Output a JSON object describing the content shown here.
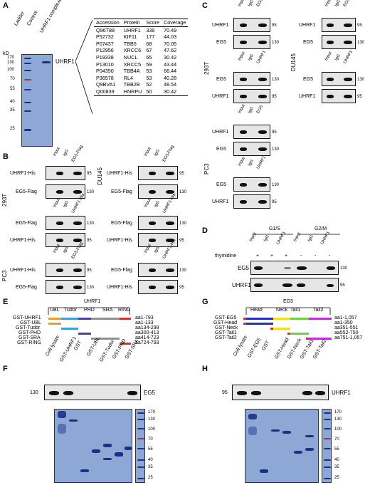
{
  "panels": {
    "A": "A",
    "B": "B",
    "C": "C",
    "D": "D",
    "E": "E",
    "F": "F",
    "G": "G",
    "H": "H"
  },
  "panelA": {
    "kd_label": "kD",
    "lanes": [
      "Ladder",
      "Control",
      "UHRF1 complexes"
    ],
    "markers": [
      "170",
      "130",
      "100",
      "70",
      "55",
      "40",
      "35",
      "25"
    ],
    "band_label": "UHRF1",
    "table": {
      "headers": [
        "Accession",
        "Protein",
        "Score",
        "Coverage"
      ],
      "rows": [
        [
          "Q96T88",
          "UHRF1",
          "339",
          "70.49"
        ],
        [
          "P52732",
          "KIF11",
          "177",
          "44.03"
        ],
        [
          "P07437",
          "TBB5",
          "68",
          "70.05"
        ],
        [
          "P12956",
          "XRCC6",
          "67",
          "47.62"
        ],
        [
          "P19338",
          "NUCL",
          "65",
          "30.42"
        ],
        [
          "P13010",
          "XRCC5",
          "59",
          "43.44"
        ],
        [
          "P04350",
          "TBB4A",
          "53",
          "66.44"
        ],
        [
          "P36578",
          "RL4",
          "53",
          "40.28"
        ],
        [
          "Q9BVA1",
          "TBB2B",
          "52",
          "48.54"
        ],
        [
          "Q00839",
          "HNRPU",
          "50",
          "30.42"
        ]
      ]
    }
  },
  "panelB": {
    "cells": [
      "293T",
      "DU145",
      "PC3"
    ],
    "lanes_eg5": [
      "Input",
      "IgG",
      "EG5-Flag"
    ],
    "lanes_uhrf1": [
      "Input",
      "IgG",
      "UHRF1-His"
    ],
    "labels": {
      "uhrf1_his": "UHRF1-His",
      "eg5_flag": "EG5-Flag"
    },
    "mw": {
      "m95": "95",
      "m130": "130"
    }
  },
  "panelC": {
    "cells": [
      "293T",
      "DU145",
      "PC3"
    ],
    "lanes_eg5": [
      "Input",
      "IgG",
      "EG5"
    ],
    "lanes_uhrf1": [
      "Input",
      "IgG",
      "UHRF1"
    ],
    "labels": {
      "uhrf1": "UHRF1",
      "eg5": "EG5"
    },
    "mw": {
      "m95": "95",
      "m130": "130"
    }
  },
  "panelD": {
    "phases": [
      "G1/S",
      "G2/M"
    ],
    "thymidine_label": "thymidine",
    "signs": [
      "+",
      "+",
      "+",
      "-",
      "-",
      "-"
    ],
    "lanes": [
      "Input",
      "IgG",
      "UHRF1",
      "Input",
      "IgG",
      "UHRF1"
    ],
    "labels": {
      "eg5": "EG5",
      "uhrf1": "UHRF1"
    },
    "mw": {
      "m130": "130",
      "m95": "95"
    }
  },
  "panelE": {
    "title": "UHRF1",
    "domains": [
      "UBL",
      "Tudor",
      "PHD",
      "SRA",
      "RING"
    ],
    "constructs": [
      "GST-UHRF1",
      "GST-UBL",
      "GST-Tudor",
      "GST-PHD",
      "GST-SRA",
      "GST-RING"
    ],
    "ranges": [
      "aa1-793",
      "aa1-133",
      "aa134-299",
      "aa300-413",
      "aa414-723",
      "aa724-793"
    ]
  },
  "panelF": {
    "lanes": [
      "Cell lysate",
      "GST-UHRF1",
      "GST",
      "GST-UBL",
      "GST-Tudor",
      "GST-PHD",
      "GST-SRA"
    ],
    "blot_label": "EG5",
    "mw_blot": "130",
    "markers": [
      "170",
      "130",
      "100",
      "70",
      "55",
      "40",
      "35",
      "25"
    ]
  },
  "panelG": {
    "title": "EG5",
    "domains": [
      "Head",
      "Neck",
      "Tail1",
      "Tail2"
    ],
    "constructs": [
      "GST-EG5",
      "GST-Head",
      "GST-Neck",
      "GST-Tail1",
      "GST-Tail2"
    ],
    "ranges": [
      "aa1-1,057",
      "aa1-350",
      "aa351-551",
      "aa552-750",
      "aa751-1,057"
    ]
  },
  "panelH": {
    "lanes": [
      "Cell lysate",
      "GST-EG5",
      "GST",
      "GST-Head",
      "GST-Neck",
      "GST-Tail1",
      "GST-Tail2"
    ],
    "blot_label": "UHRF1",
    "mw_blot": "95",
    "markers": [
      "170",
      "130",
      "100",
      "70",
      "55",
      "40",
      "35",
      "25"
    ]
  },
  "colors": {
    "coomassie_bg": "#8ea8d6",
    "band": "#1b2f86",
    "ubl": "#e0a13a",
    "tudor": "#3aa0d6",
    "phd": "#5a3aa0",
    "sra": "#909090",
    "ring": "#d63030",
    "head": "#2430c0",
    "neck": "#f0e020",
    "tail1": "#70d040",
    "tail2": "#c030d0"
  }
}
